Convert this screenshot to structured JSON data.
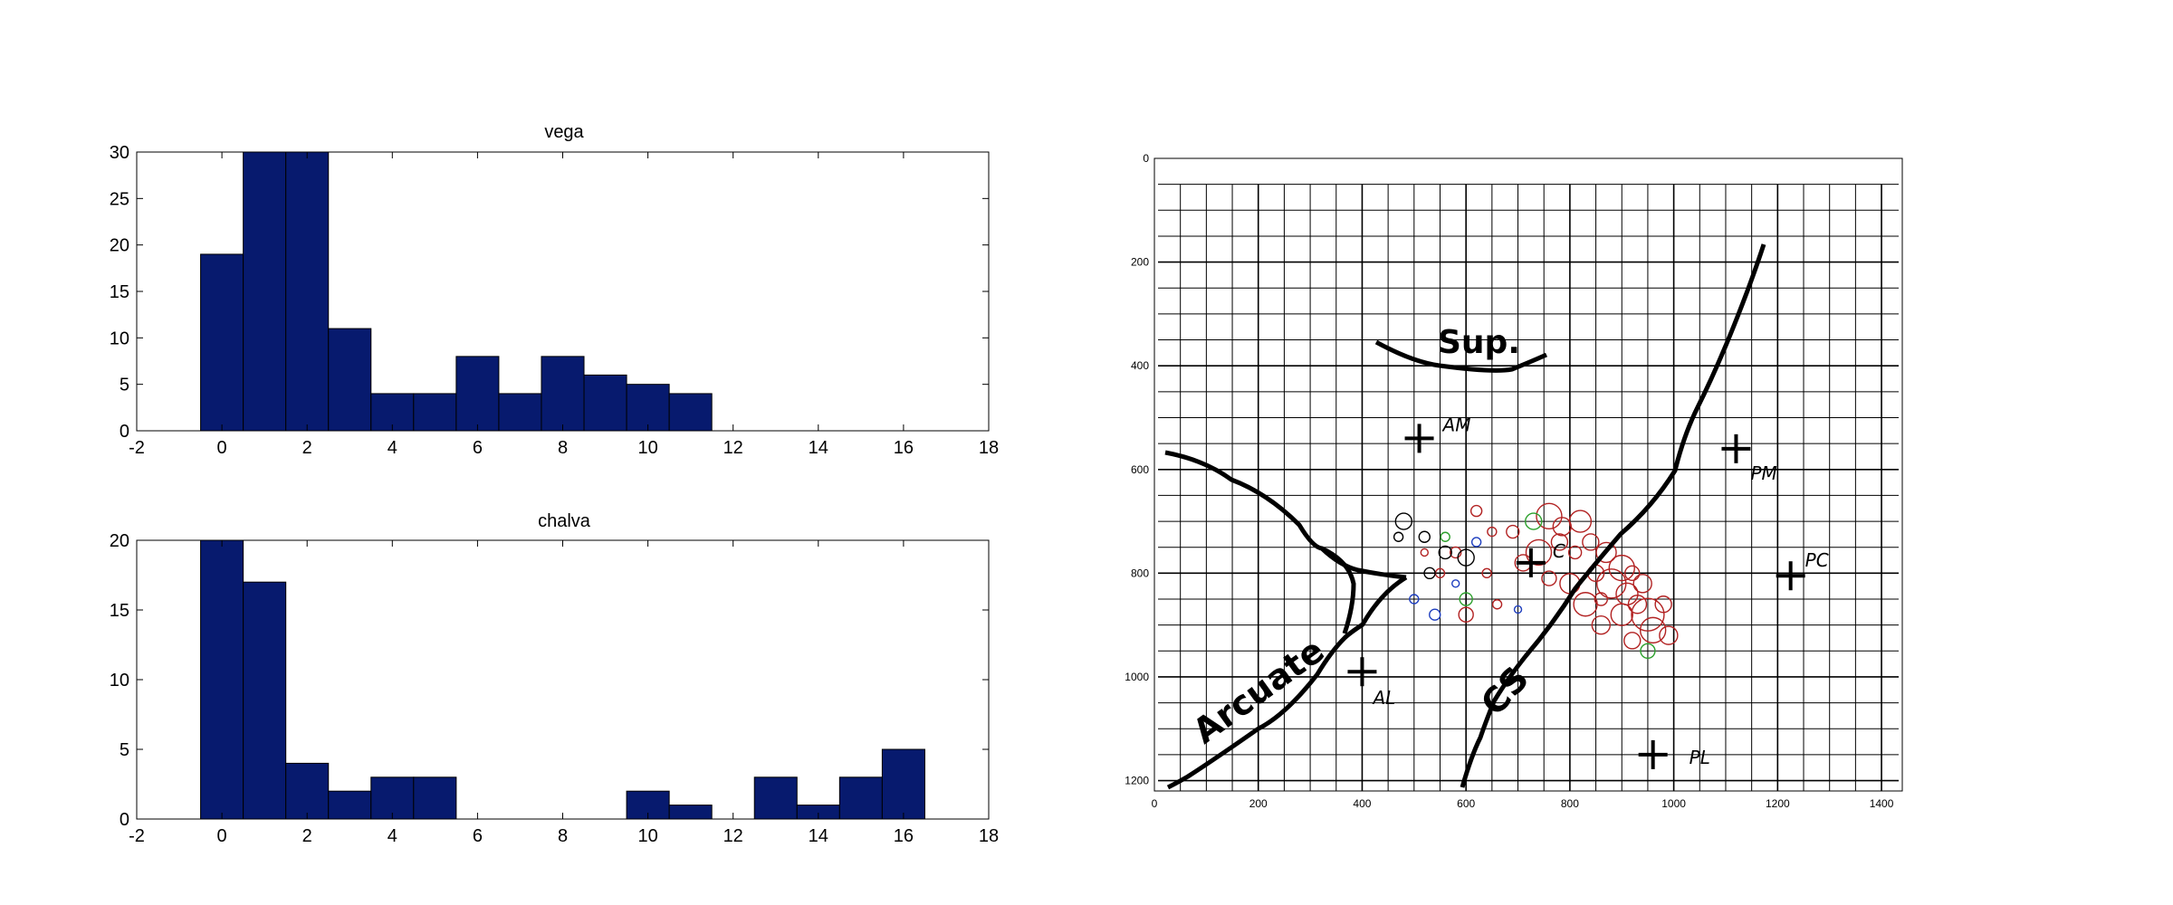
{
  "colors": {
    "bar": "#071a6e",
    "axis": "#000000",
    "circle_red": "#b22222",
    "circle_green": "#2ca02c",
    "circle_black": "#000000",
    "circle_blue": "#1f3fbf"
  },
  "chart_data": [
    {
      "type": "bar",
      "title": "vega",
      "x": [
        0,
        1,
        2,
        3,
        4,
        5,
        6,
        7,
        8,
        9,
        10,
        11
      ],
      "values": [
        19,
        30,
        30,
        11,
        4,
        4,
        8,
        4,
        8,
        6,
        5,
        4
      ],
      "xlim": [
        -2,
        18
      ],
      "ylim": [
        0,
        30
      ],
      "xticks": [
        "-2",
        "0",
        "2",
        "4",
        "6",
        "8",
        "10",
        "12",
        "14",
        "16",
        "18"
      ],
      "yticks": [
        "0",
        "5",
        "10",
        "15",
        "20",
        "25",
        "30"
      ],
      "grid": false
    },
    {
      "type": "bar",
      "title": "chalva",
      "x": [
        0,
        1,
        2,
        3,
        4,
        5,
        10,
        11,
        13,
        14,
        15,
        16
      ],
      "values": [
        20,
        17,
        4,
        2,
        3,
        3,
        2,
        1,
        3,
        1,
        3,
        5
      ],
      "xlim": [
        -2,
        18
      ],
      "ylim": [
        0,
        20
      ],
      "xticks": [
        "-2",
        "0",
        "2",
        "4",
        "6",
        "8",
        "10",
        "12",
        "14",
        "16",
        "18"
      ],
      "yticks": [
        "0",
        "5",
        "10",
        "15",
        "20"
      ],
      "grid": false
    },
    {
      "type": "scatter",
      "xlim": [
        0,
        1440
      ],
      "ylim": [
        1220,
        0
      ],
      "xticks": [
        "0",
        "200",
        "400",
        "600",
        "800",
        "1000",
        "1200",
        "1400"
      ],
      "yticks": [
        "0",
        "200",
        "400",
        "600",
        "800",
        "1000",
        "1200"
      ],
      "grid": true,
      "labels": {
        "sup": "Sup.",
        "arcuate": "Arcuate",
        "cs": "CS",
        "am": "AM",
        "pm": "PM",
        "pc": "PC",
        "al": "AL",
        "pl": "PL",
        "c": "C"
      },
      "crosses": [
        {
          "name": "AM",
          "x": 510,
          "y": 540
        },
        {
          "name": "PM",
          "x": 1120,
          "y": 560
        },
        {
          "name": "C",
          "x": 725,
          "y": 780
        },
        {
          "name": "PC",
          "x": 1225,
          "y": 805
        },
        {
          "name": "AL",
          "x": 400,
          "y": 990
        },
        {
          "name": "PL",
          "x": 960,
          "y": 1150
        }
      ],
      "points": [
        {
          "x": 760,
          "y": 690,
          "r": 14,
          "c": "red"
        },
        {
          "x": 785,
          "y": 710,
          "r": 10,
          "c": "red"
        },
        {
          "x": 820,
          "y": 700,
          "r": 12,
          "c": "red"
        },
        {
          "x": 840,
          "y": 740,
          "r": 9,
          "c": "red"
        },
        {
          "x": 870,
          "y": 760,
          "r": 11,
          "c": "red"
        },
        {
          "x": 900,
          "y": 790,
          "r": 14,
          "c": "red"
        },
        {
          "x": 880,
          "y": 820,
          "r": 16,
          "c": "red"
        },
        {
          "x": 910,
          "y": 840,
          "r": 12,
          "c": "red"
        },
        {
          "x": 930,
          "y": 860,
          "r": 10,
          "c": "red"
        },
        {
          "x": 950,
          "y": 880,
          "r": 18,
          "c": "red"
        },
        {
          "x": 900,
          "y": 880,
          "r": 12,
          "c": "red"
        },
        {
          "x": 860,
          "y": 900,
          "r": 10,
          "c": "red"
        },
        {
          "x": 960,
          "y": 910,
          "r": 14,
          "c": "red"
        },
        {
          "x": 990,
          "y": 920,
          "r": 10,
          "c": "red"
        },
        {
          "x": 920,
          "y": 930,
          "r": 9,
          "c": "red"
        },
        {
          "x": 830,
          "y": 860,
          "r": 13,
          "c": "red"
        },
        {
          "x": 800,
          "y": 820,
          "r": 11,
          "c": "red"
        },
        {
          "x": 760,
          "y": 810,
          "r": 8,
          "c": "red"
        },
        {
          "x": 740,
          "y": 760,
          "r": 14,
          "c": "red"
        },
        {
          "x": 710,
          "y": 780,
          "r": 9,
          "c": "red"
        },
        {
          "x": 690,
          "y": 720,
          "r": 7,
          "c": "red"
        },
        {
          "x": 850,
          "y": 800,
          "r": 9,
          "c": "red"
        },
        {
          "x": 920,
          "y": 800,
          "r": 8,
          "c": "red"
        },
        {
          "x": 940,
          "y": 820,
          "r": 10,
          "c": "red"
        },
        {
          "x": 980,
          "y": 860,
          "r": 9,
          "c": "red"
        },
        {
          "x": 810,
          "y": 760,
          "r": 7,
          "c": "red"
        },
        {
          "x": 780,
          "y": 740,
          "r": 9,
          "c": "red"
        },
        {
          "x": 860,
          "y": 850,
          "r": 7,
          "c": "red"
        },
        {
          "x": 620,
          "y": 680,
          "r": 6,
          "c": "red"
        },
        {
          "x": 650,
          "y": 720,
          "r": 5,
          "c": "red"
        },
        {
          "x": 580,
          "y": 760,
          "r": 6,
          "c": "red"
        },
        {
          "x": 600,
          "y": 880,
          "r": 8,
          "c": "red"
        },
        {
          "x": 550,
          "y": 800,
          "r": 5,
          "c": "red"
        },
        {
          "x": 640,
          "y": 800,
          "r": 5,
          "c": "red"
        },
        {
          "x": 660,
          "y": 860,
          "r": 5,
          "c": "red"
        },
        {
          "x": 520,
          "y": 760,
          "r": 4,
          "c": "red"
        },
        {
          "x": 730,
          "y": 700,
          "r": 9,
          "c": "green"
        },
        {
          "x": 600,
          "y": 850,
          "r": 7,
          "c": "green"
        },
        {
          "x": 950,
          "y": 950,
          "r": 8,
          "c": "green"
        },
        {
          "x": 560,
          "y": 730,
          "r": 5,
          "c": "green"
        },
        {
          "x": 480,
          "y": 700,
          "r": 9,
          "c": "black"
        },
        {
          "x": 520,
          "y": 730,
          "r": 6,
          "c": "black"
        },
        {
          "x": 560,
          "y": 760,
          "r": 7,
          "c": "black"
        },
        {
          "x": 600,
          "y": 770,
          "r": 9,
          "c": "black"
        },
        {
          "x": 470,
          "y": 730,
          "r": 5,
          "c": "black"
        },
        {
          "x": 530,
          "y": 800,
          "r": 6,
          "c": "black"
        },
        {
          "x": 500,
          "y": 850,
          "r": 5,
          "c": "blue"
        },
        {
          "x": 540,
          "y": 880,
          "r": 6,
          "c": "blue"
        },
        {
          "x": 620,
          "y": 740,
          "r": 5,
          "c": "blue"
        },
        {
          "x": 580,
          "y": 820,
          "r": 4,
          "c": "blue"
        },
        {
          "x": 700,
          "y": 870,
          "r": 4,
          "c": "blue"
        }
      ]
    }
  ]
}
